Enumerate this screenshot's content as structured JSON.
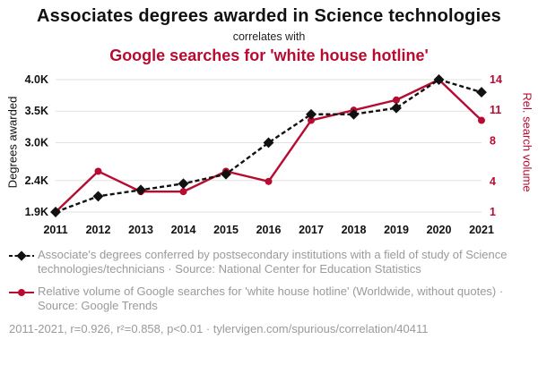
{
  "header": {
    "title": "Associates degrees awarded in Science technologies",
    "connector": "correlates with",
    "subtitle": "Google searches for 'white house hotline'"
  },
  "chart_data": {
    "type": "line",
    "title": "Associates degrees awarded in Science technologies correlates with Google searches for 'white house hotline'",
    "x": [
      2011,
      2012,
      2013,
      2014,
      2015,
      2016,
      2017,
      2018,
      2019,
      2020,
      2021
    ],
    "series": [
      {
        "name": "Associate's degrees awarded in Science technologies",
        "axis": "left",
        "style": "dashed-diamond",
        "values": [
          1900,
          2150,
          2250,
          2350,
          2500,
          3000,
          3450,
          3450,
          3550,
          4000,
          3800
        ]
      },
      {
        "name": "Google searches for 'white house hotline'",
        "axis": "right",
        "style": "solid-circle",
        "values": [
          1,
          5,
          3,
          3,
          5,
          4,
          10,
          11,
          12,
          14,
          10
        ]
      }
    ],
    "ylabel_left": "Degrees awarded",
    "ylabel_right": "Rel. search volume",
    "left_ticks": [
      {
        "v": 1900,
        "label": "1.9K"
      },
      {
        "v": 2400,
        "label": "2.4K"
      },
      {
        "v": 3000,
        "label": "3.0K"
      },
      {
        "v": 3500,
        "label": "3.5K"
      },
      {
        "v": 4000,
        "label": "4.0K"
      }
    ],
    "right_ticks": [
      {
        "v": 1,
        "label": "1"
      },
      {
        "v": 4,
        "label": "4"
      },
      {
        "v": 8,
        "label": "8"
      },
      {
        "v": 11,
        "label": "11"
      },
      {
        "v": 14,
        "label": "14"
      }
    ],
    "ylim_left": [
      1900,
      4000
    ],
    "ylim_right": [
      1,
      14
    ],
    "grid": true,
    "legend_position": "bottom",
    "colors": {
      "left": "#111111",
      "right": "#b80b31",
      "grid": "#e2e2e2"
    }
  },
  "legend": {
    "series1": "Associate's degrees conferred by postsecondary institutions with a field of study of Science technologies/technicians · Source: National Center for Education Statistics",
    "series2": "Relative volume of Google searches for 'white house hotline' (Worldwide, without quotes) · Source: Google Trends"
  },
  "footer": {
    "text": "2011-2021, r=0.926, r²=0.858, p<0.01 · tylervigen.com/spurious/correlation/40411"
  }
}
